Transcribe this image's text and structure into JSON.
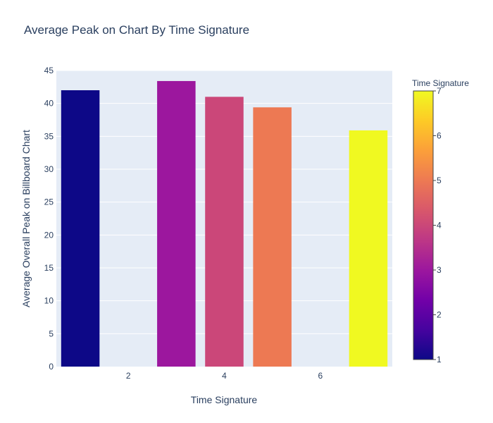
{
  "chart_data": {
    "type": "bar",
    "title": "Average Peak on Chart By Time Signature",
    "xlabel": "Time Signature",
    "ylabel": "Average Overall Peak on Billboard Chart",
    "x": [
      1,
      3,
      4,
      5,
      7
    ],
    "values": [
      42.0,
      43.4,
      41.0,
      39.4,
      35.9
    ],
    "xlim": [
      0.5,
      7.5
    ],
    "ylim": [
      0,
      45
    ],
    "xticks": [
      2,
      4,
      6
    ],
    "yticks": [
      0,
      5,
      10,
      15,
      20,
      25,
      30,
      35,
      40,
      45
    ],
    "grid": true,
    "plot_background": "#e5ecf6",
    "colorbar": {
      "title": "Time Signature",
      "range": [
        1,
        7
      ],
      "ticks": [
        1,
        2,
        3,
        4,
        5,
        6,
        7
      ],
      "colorscale": [
        "#0d0887",
        "#46039f",
        "#7201a8",
        "#9c179e",
        "#bd3786",
        "#d8576b",
        "#ed7953",
        "#fb9f3a",
        "#fdca26",
        "#f0f921"
      ]
    }
  }
}
